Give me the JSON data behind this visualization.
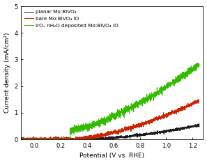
{
  "title": "",
  "xlabel": "Potential (V vs. RHE)",
  "ylabel": "Current density (mA/cm²)",
  "xlim": [
    -0.1,
    1.28
  ],
  "ylim": [
    0,
    5
  ],
  "xticks": [
    0.0,
    0.2,
    0.4,
    0.6,
    0.8,
    1.0,
    1.2
  ],
  "yticks": [
    0,
    1,
    2,
    3,
    4,
    5
  ],
  "legend": [
    "planar Mo:BiVO₄",
    "bare Mo:BiVO₄ IO",
    "IrOₓ nH₂O deposited Mo:BiVO₄ IO"
  ],
  "colors": [
    "#1a1a1a",
    "#cc2200",
    "#33bb00"
  ],
  "onset_black": 0.28,
  "onset_red": 0.27,
  "onset_green": 0.27,
  "background_color": "#ffffff",
  "figsize": [
    2.97,
    2.34
  ],
  "dpi": 100
}
